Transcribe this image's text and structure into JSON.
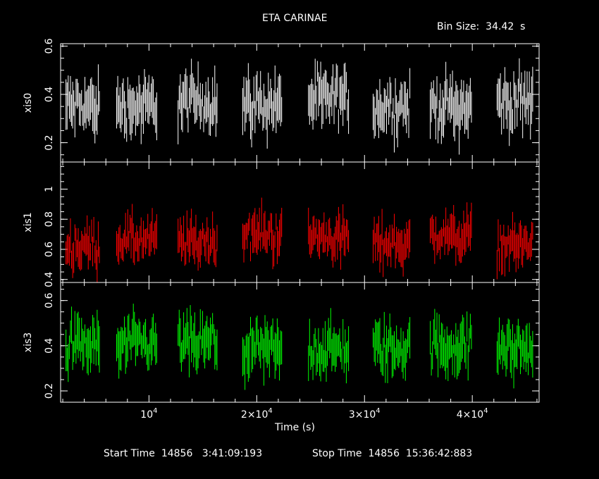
{
  "chart_data": {
    "type": "line",
    "title": "ETA CARINAE",
    "bin_size_label": "Bin Size:  34.42  s",
    "xlabel": "Time (s)",
    "xlim": [
      1800,
      46200
    ],
    "x_ticks": [
      {
        "value": 10000,
        "label": "10",
        "exp": "4"
      },
      {
        "value": 20000,
        "label": "2×10",
        "exp": "4"
      },
      {
        "value": 30000,
        "label": "3×10",
        "exp": "4"
      },
      {
        "value": 40000,
        "label": "4×10",
        "exp": "4"
      }
    ],
    "segments": [
      [
        2300,
        5500
      ],
      [
        7000,
        10800
      ],
      [
        12700,
        16400
      ],
      [
        18700,
        22400
      ],
      [
        24800,
        28600
      ],
      [
        30800,
        34300
      ],
      [
        36100,
        40000
      ],
      [
        42300,
        45700
      ]
    ],
    "panels": [
      {
        "name": "xis0",
        "ylabel": "xis0",
        "color": "#ffffff",
        "ylim": [
          0.12,
          0.61
        ],
        "yticks": [
          0.2,
          0.4,
          0.6
        ],
        "ytick_labels": [
          "0.2",
          "0.4",
          "0.6"
        ],
        "segment_means": [
          0.35,
          0.35,
          0.37,
          0.36,
          0.38,
          0.35,
          0.35,
          0.37
        ],
        "spread": 0.07
      },
      {
        "name": "xis1",
        "ylabel": "xis1",
        "color": "#ff0000",
        "ylim": [
          0.38,
          1.18
        ],
        "yticks": [
          0.4,
          0.6,
          0.8,
          1.0
        ],
        "ytick_labels": [
          "0.4",
          "0.6",
          "0.8",
          "1"
        ],
        "segment_means": [
          0.62,
          0.66,
          0.65,
          0.7,
          0.68,
          0.64,
          0.69,
          0.63
        ],
        "spread": 0.09
      },
      {
        "name": "xis3",
        "ylabel": "xis3",
        "color": "#00ff00",
        "ylim": [
          0.15,
          0.68
        ],
        "yticks": [
          0.2,
          0.4,
          0.6
        ],
        "ytick_labels": [
          "0.2",
          "0.4",
          "0.6"
        ],
        "segment_means": [
          0.4,
          0.4,
          0.41,
          0.38,
          0.38,
          0.39,
          0.4,
          0.39
        ],
        "spread": 0.07
      }
    ]
  },
  "footer": {
    "start_label": "Start Time  14856   3:41:09:193",
    "stop_label": "Stop Time  14856  15:36:42:883"
  }
}
